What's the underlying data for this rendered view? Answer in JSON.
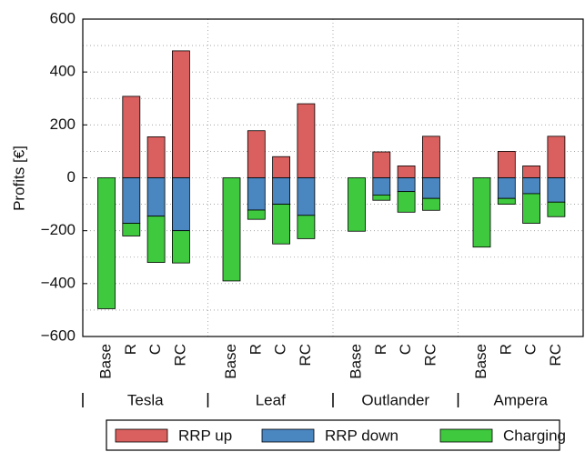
{
  "chart_data": {
    "type": "stacked_bar",
    "y_label": "Profits [€]",
    "categories": [
      "Base",
      "R",
      "C",
      "RC",
      "Base",
      "R",
      "C",
      "RC",
      "Base",
      "R",
      "C",
      "RC",
      "Base",
      "R",
      "C",
      "RC"
    ],
    "groups": [
      "Tesla",
      "Leaf",
      "Outlander",
      "Ampera"
    ],
    "series": [
      {
        "name": "RRP up",
        "color": "#d9605e",
        "values": [
          null,
          308,
          155,
          480,
          null,
          178,
          80,
          280,
          null,
          98,
          45,
          157,
          null,
          100,
          45,
          157
        ]
      },
      {
        "name": "RRP down",
        "color": "#4a86c0",
        "values": [
          null,
          -172,
          -145,
          -200,
          null,
          -122,
          -100,
          -142,
          null,
          -65,
          -52,
          -78,
          null,
          -78,
          -60,
          -92
        ]
      },
      {
        "name": "Charging",
        "color": "#3ec93e",
        "values": [
          -495,
          -48,
          -175,
          -122,
          -390,
          -35,
          -150,
          -88,
          -202,
          -20,
          -78,
          -45,
          -262,
          -22,
          -112,
          -55
        ]
      }
    ],
    "ylim": [
      -600,
      600
    ],
    "yticks": [
      {
        "value": -600,
        "label": "−600"
      },
      {
        "value": -400,
        "label": "−400"
      },
      {
        "value": -200,
        "label": "−200"
      },
      0,
      200,
      400,
      600
    ],
    "yminorticks": [
      -500,
      -300,
      -100,
      100,
      300,
      500
    ],
    "grid": true,
    "legend": "bottom"
  }
}
